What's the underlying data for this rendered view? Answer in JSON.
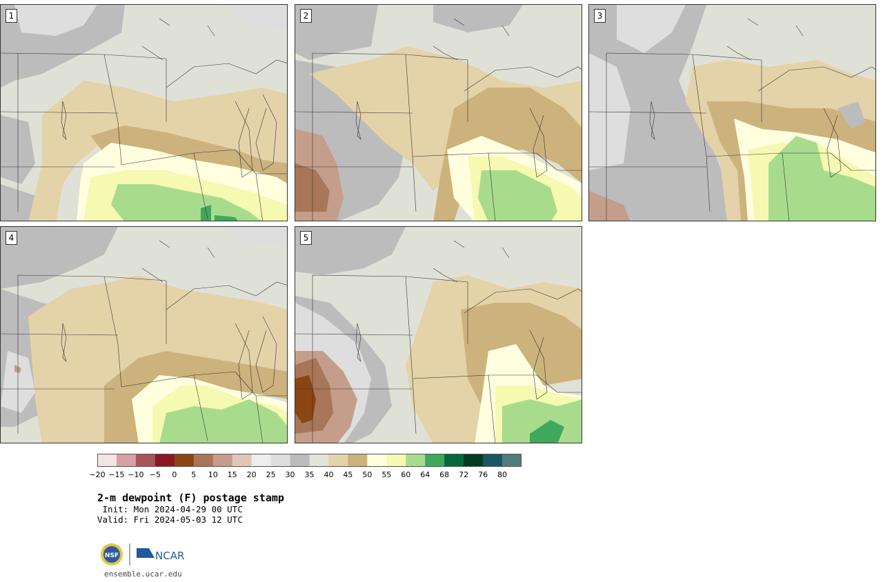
{
  "panels": [
    {
      "label": "1"
    },
    {
      "label": "2"
    },
    {
      "label": "3"
    },
    {
      "label": "4"
    },
    {
      "label": "5"
    }
  ],
  "colorbar": {
    "colors": [
      "#f3e5e5",
      "#d4a1a6",
      "#a8545b",
      "#8a1820",
      "#8b4512",
      "#a87658",
      "#c49e8a",
      "#e0c6b8",
      "#eeeeee",
      "#dedede",
      "#bcbcbc",
      "#e2e2d8",
      "#e4d2a9",
      "#ccb27c",
      "#ffffe0",
      "#f5f9b1",
      "#a8dc8c",
      "#40a85c",
      "#06683a",
      "#033a22",
      "#1b5666",
      "#537b7c"
    ],
    "ticks": [
      "−20",
      "−15",
      "−10",
      "−5",
      "0",
      "5",
      "10",
      "15",
      "20",
      "25",
      "30",
      "35",
      "40",
      "45",
      "50",
      "55",
      "60",
      "64",
      "68",
      "72",
      "76",
      "80"
    ]
  },
  "title": "2-m dewpoint (F) postage stamp",
  "init": " Init: Mon 2024-04-29 00 UTC",
  "valid": "Valid: Fri 2024-05-03 12 UTC",
  "logo": {
    "nsf": "NSF",
    "ncar": "NCAR"
  },
  "website": "ensemble.ucar.edu",
  "map_colors": {
    "background": "#e0e1d6",
    "gray": "#bcbcbc",
    "light_gray": "#dedede",
    "tan": "#e4d2a9",
    "dark_tan": "#ccb27c",
    "cream": "#ffffe0",
    "light_yellow": "#f5f9b1",
    "light_green": "#a8dc8c",
    "green": "#40a85c",
    "brown": "#a87658",
    "dark_brown": "#8b4512",
    "pink_tan": "#c49e8a"
  }
}
